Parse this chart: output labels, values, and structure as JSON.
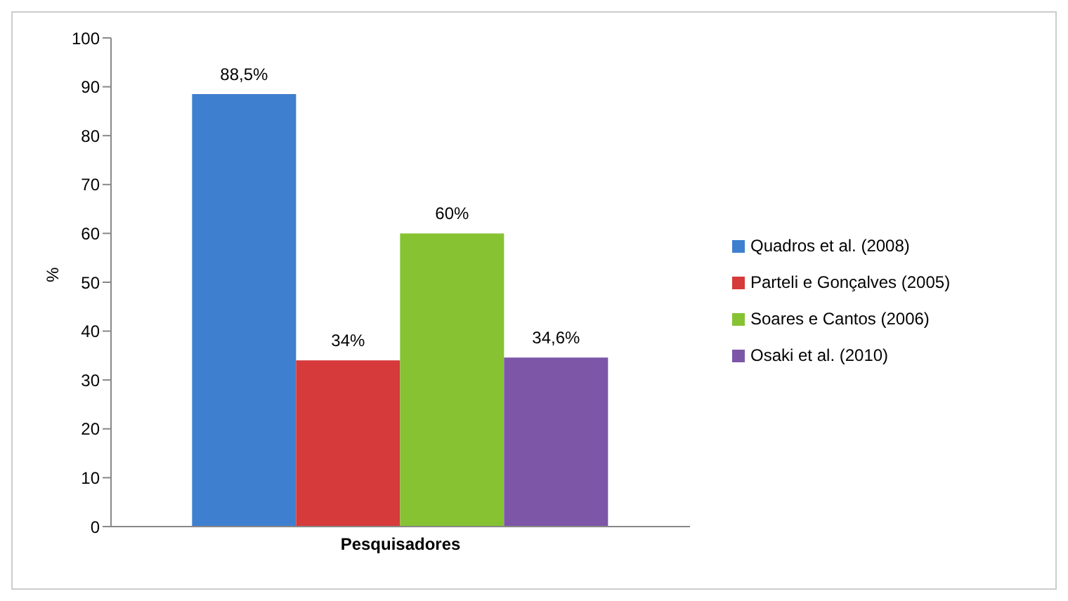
{
  "chart_data": {
    "type": "bar",
    "categories": [
      "Pesquisadores"
    ],
    "ylabel": "%",
    "ylim": [
      0,
      100
    ],
    "yticks": [
      0,
      10,
      20,
      30,
      40,
      50,
      60,
      70,
      80,
      90,
      100
    ],
    "grid": false,
    "legend": "right",
    "series": [
      {
        "name": "Quadros et al. (2008)",
        "color": "#3f7fcf",
        "values": [
          88.5
        ],
        "value_labels": [
          "88,5%"
        ]
      },
      {
        "name": "Parteli e Gonçalves (2005)",
        "color": "#d63a3a",
        "values": [
          34
        ],
        "value_labels": [
          "34%"
        ]
      },
      {
        "name": "Soares e Cantos (2006)",
        "color": "#86c232",
        "values": [
          60
        ],
        "value_labels": [
          "60%"
        ]
      },
      {
        "name": "Osaki et al. (2010)",
        "color": "#7d56a8",
        "values": [
          34.6
        ],
        "value_labels": [
          "34,6%"
        ]
      }
    ]
  }
}
